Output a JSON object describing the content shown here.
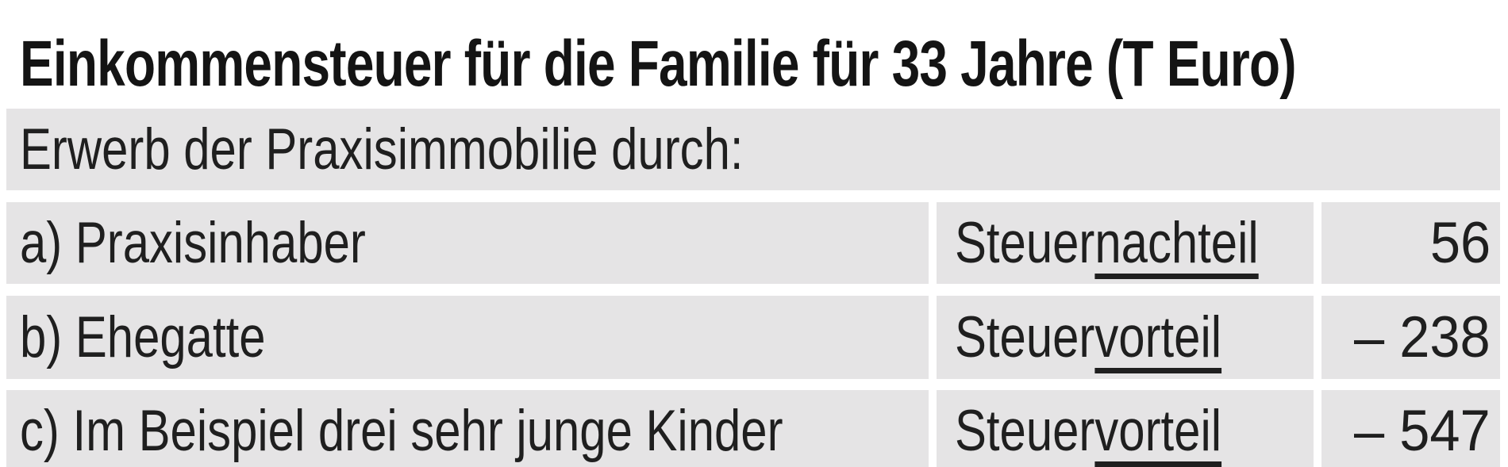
{
  "title": "Einkommensteuer für die Familie für 33 Jahre (T Euro)",
  "table": {
    "subheader": "Erwerb der Praxisimmobilie durch:",
    "rows": [
      {
        "label": "a) Praxisinhaber",
        "effect_prefix": "Steuer",
        "effect_underlined": "nachteil",
        "value": "56"
      },
      {
        "label": "b) Ehegatte",
        "effect_prefix": "Steuer",
        "effect_underlined": "vorteil",
        "value": "– 238"
      },
      {
        "label": "c) Im Beispiel drei sehr junge Kinder",
        "effect_prefix": "Steuer",
        "effect_underlined": "vorteil",
        "value": "– 547"
      }
    ]
  },
  "colors": {
    "page_background": "#ffffff",
    "row_background": "#e5e4e5",
    "title_text": "#141414",
    "body_text": "#1f1f1f"
  }
}
